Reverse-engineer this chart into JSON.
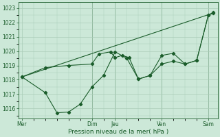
{
  "title": "",
  "xlabel": "Pression niveau de la mer( hPa )",
  "ylabel": "",
  "bg_color": "#cce8d8",
  "line_color": "#1a5c2a",
  "grid_color": "#aaccb8",
  "ylim": [
    1015.3,
    1023.4
  ],
  "yticks": [
    1016,
    1017,
    1018,
    1019,
    1020,
    1021,
    1022,
    1023
  ],
  "xtick_labels": [
    "Mer",
    "",
    "Dim",
    "Jeu",
    "",
    "Ven",
    "",
    "Sam"
  ],
  "xtick_positions": [
    0,
    1.5,
    3,
    4,
    5,
    6,
    7,
    8
  ],
  "vlines": [
    3,
    4,
    6,
    8
  ],
  "series1": {
    "x": [
      0,
      1,
      2,
      3,
      3.3,
      3.8,
      4.0,
      4.3,
      4.6,
      5.0,
      5.5,
      6.0,
      6.5,
      7.0,
      7.5,
      8.0,
      8.2
    ],
    "y": [
      1018.2,
      1018.85,
      1019.0,
      1019.1,
      1019.8,
      1019.95,
      1019.55,
      1019.7,
      1019.55,
      1018.05,
      1018.3,
      1019.7,
      1019.85,
      1019.1,
      1019.35,
      1022.5,
      1022.65
    ]
  },
  "series2": {
    "x": [
      0,
      1,
      1.5,
      2,
      2.5,
      3,
      3.5,
      4,
      4.5,
      5.0,
      5.5,
      6.0,
      6.5,
      7.0,
      7.5,
      8.0,
      8.2
    ],
    "y": [
      1018.2,
      1017.1,
      1015.7,
      1015.75,
      1016.3,
      1017.5,
      1018.3,
      1019.95,
      1019.5,
      1018.05,
      1018.3,
      1019.1,
      1019.3,
      1019.1,
      1019.35,
      1022.5,
      1022.7
    ]
  },
  "series3": {
    "x": [
      0,
      8.2
    ],
    "y": [
      1018.2,
      1022.65
    ]
  },
  "xlim": [
    -0.15,
    8.4
  ]
}
